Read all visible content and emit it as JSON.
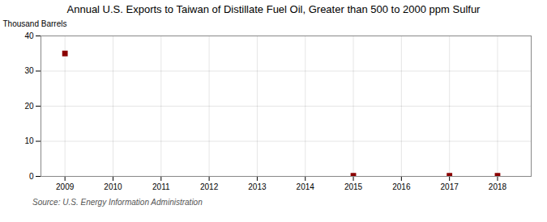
{
  "chart_data": {
    "type": "scatter",
    "title": "Annual U.S. Exports to Taiwan of Distillate Fuel Oil, Greater than 500 to 2000 ppm Sulfur",
    "ylabel": "Thousand Barrels",
    "source": "Source: U.S. Energy Information Administration",
    "x": [
      2009,
      2015,
      2017,
      2018
    ],
    "values": [
      35,
      0.2,
      0.2,
      0.2
    ],
    "color": "#8b0000",
    "marker": "square",
    "xlim": [
      2008.5,
      2018.7
    ],
    "xticks": [
      2009,
      2010,
      2011,
      2012,
      2013,
      2014,
      2015,
      2016,
      2017,
      2018
    ],
    "ylim": [
      0,
      40
    ],
    "yticks": [
      0,
      10,
      20,
      30,
      40
    ],
    "grid": true
  }
}
